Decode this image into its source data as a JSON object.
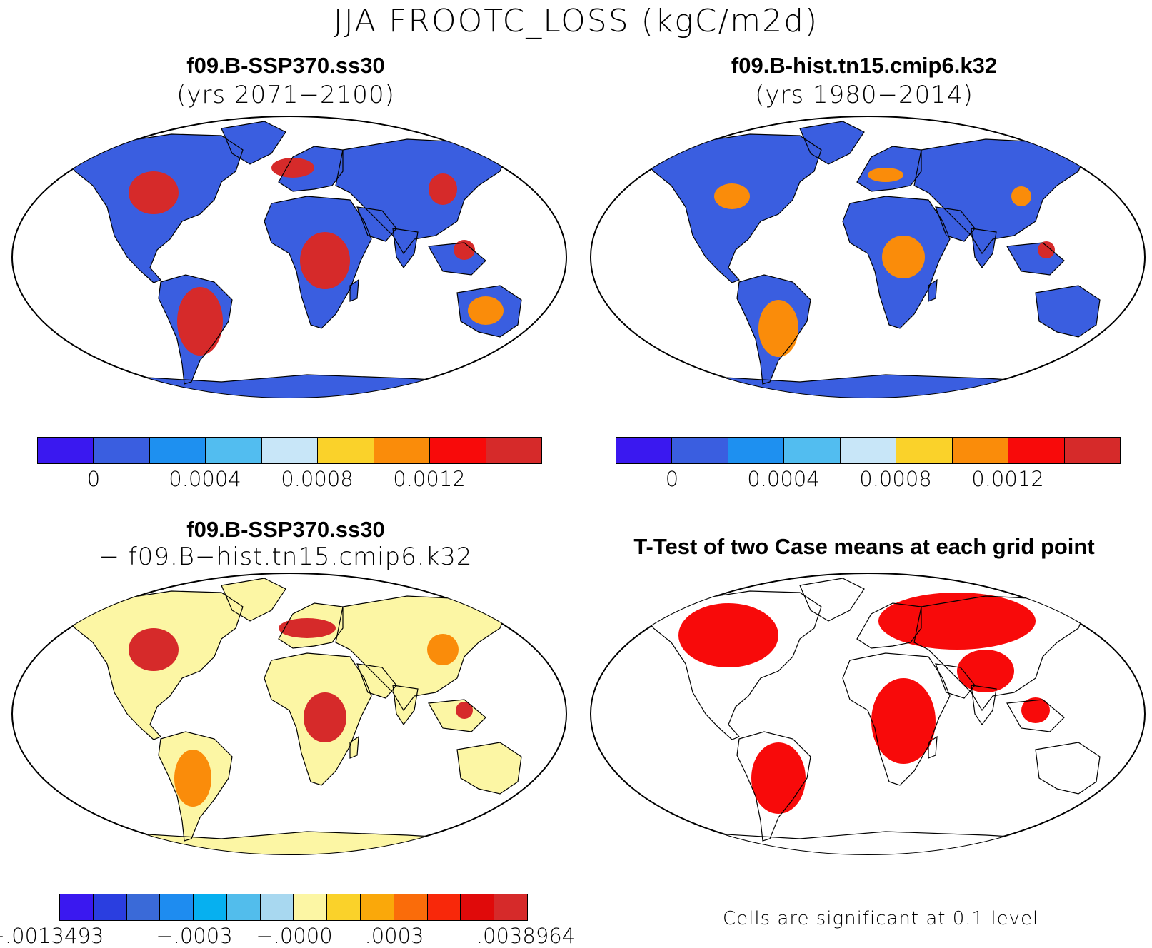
{
  "title": "JJA FROOTC_LOSS (kgC/m2d)",
  "panels": {
    "top_left": {
      "title": "f09.B-SSP370.ss30",
      "subtitle": "(yrs 2071−2100)"
    },
    "top_right": {
      "title": "f09.B-hist.tn15.cmip6.k32",
      "subtitle": "(yrs 1980−2014)"
    },
    "bottom_left": {
      "title": "f09.B-SSP370.ss30",
      "subtitle": "− f09.B−hist.tn15.cmip6.k32"
    },
    "bottom_right": {
      "title": "T-Test of two Case means at each grid point",
      "note": "Cells are significant at 0.1 level"
    }
  },
  "colorbars": {
    "absolute": {
      "colors": [
        "#3a18f0",
        "#3a5ee0",
        "#1e90f0",
        "#52bdf0",
        "#c8e6f8",
        "#fad22a",
        "#fa8c0a",
        "#f80a0a",
        "#d62a2a"
      ],
      "labels": [
        "0",
        "0.0004",
        "0.0008",
        "0.0012"
      ]
    },
    "difference": {
      "colors": [
        "#3a18f0",
        "#2a3ee0",
        "#3a6ad8",
        "#1e8cf0",
        "#06b0f0",
        "#52bdec",
        "#a8d8f0",
        "#fcf6a4",
        "#fad22a",
        "#faa80a",
        "#fa6c0a",
        "#f8280a",
        "#e00a0a",
        "#d62a2a"
      ],
      "labels": [
        ".0013493",
        ".0003",
        ".0000",
        ".0003",
        ".0038964"
      ],
      "label_prefix": [
        "−",
        "−",
        "−",
        "",
        ""
      ]
    }
  },
  "maps": {
    "ocean_color": "#ffffff",
    "outline_color": "#000000",
    "top_left_land": "#3a5ee0",
    "top_right_land": "#3a5ee0",
    "bottom_left_land": "#fcf6a4",
    "bottom_right_land": "#ffffff",
    "hot_color": "#d62a2a",
    "warm_color": "#fa8c0a",
    "significant_color": "#f80a0a"
  }
}
